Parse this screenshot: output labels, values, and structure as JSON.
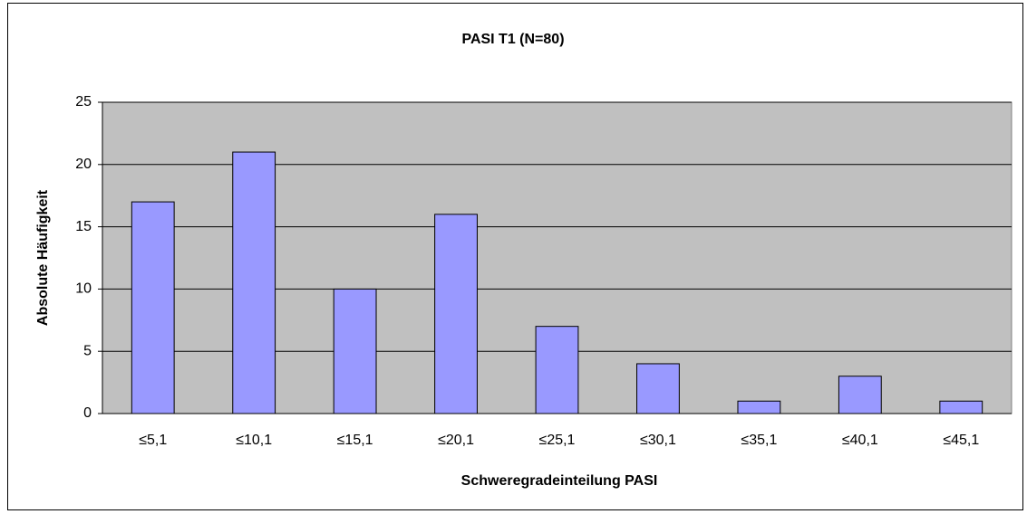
{
  "chart_data": {
    "type": "bar",
    "title": "PASI T1 (N=80)",
    "x_label": "Schweregradeinteilung PASI",
    "y_label": "Absolute Häufigkeit",
    "categories": [
      "≤5,1",
      "≤10,1",
      "≤15,1",
      "≤20,1",
      "≤25,1",
      "≤30,1",
      "≤35,1",
      "≤40,1",
      "≤45,1"
    ],
    "values": [
      17,
      21,
      10,
      16,
      7,
      4,
      1,
      3,
      1
    ],
    "color": "#9999ff",
    "ylim": [
      0,
      25
    ],
    "yticks": [
      0,
      5,
      10,
      15,
      20,
      25
    ],
    "grid": true
  }
}
